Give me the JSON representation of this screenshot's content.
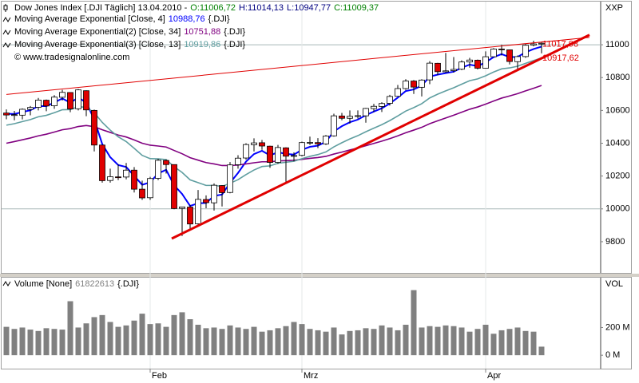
{
  "chart_data": [
    {
      "type": "candlestick",
      "title": "Dow Jones Index [.DJI  Täglich] 13.04.2010 -",
      "title_values": [
        {
          "text": "O:11006,72",
          "color": "#008000"
        },
        {
          "text": "H:11014,13",
          "color": "#000080"
        },
        {
          "text": "L:10947,77",
          "color": "#000080"
        },
        {
          "text": "C:11009,37",
          "color": "#008000"
        }
      ],
      "source": "© www.tradesignalonline.com",
      "axis_label": "XXP",
      "up_color": "#ffffff",
      "down_color": "#e00000",
      "wick_color": "#000000",
      "open": [
        10584,
        10571,
        10571,
        10606,
        10619,
        10662,
        10628,
        10680,
        10709,
        10610,
        10720,
        10600,
        10389,
        10173,
        10195,
        10194,
        10236,
        10120,
        10068,
        10186,
        10295,
        10270,
        10003,
        10011,
        9909,
        10057,
        10037,
        10142,
        10100,
        10269,
        10310,
        10391,
        10403,
        10382,
        10283,
        10372,
        10321,
        10326,
        10404,
        10404,
        10396,
        10445,
        10566,
        10552,
        10563,
        10567,
        10611,
        10624,
        10643,
        10686,
        10733,
        10779,
        10741,
        10786,
        10887,
        10835,
        10842,
        10851,
        10895,
        10906,
        10857,
        10927,
        10974,
        10969,
        10897,
        10928,
        10998,
        11006.72
      ],
      "high": [
        10606,
        10597,
        10612,
        10627,
        10676,
        10666,
        10693,
        10725,
        10710,
        10730,
        10722,
        10605,
        10390,
        10245,
        10271,
        10280,
        10255,
        10172,
        10195,
        10305,
        10301,
        10271,
        10012,
        10024,
        10115,
        10082,
        10155,
        10145,
        10285,
        10327,
        10400,
        10430,
        10420,
        10385,
        10390,
        10375,
        10345,
        10410,
        10440,
        10431,
        10450,
        10580,
        10585,
        10600,
        10600,
        10615,
        10640,
        10650,
        10695,
        10755,
        10790,
        10785,
        10790,
        10900,
        10890,
        10950,
        10925,
        10905,
        10920,
        10910,
        10960,
        10980,
        11000,
        10970,
        10935,
        11005,
        11025,
        11014.13
      ],
      "low": [
        10546,
        10540,
        10545,
        10570,
        10600,
        10595,
        10610,
        10660,
        10589,
        10600,
        10565,
        10350,
        10160,
        10160,
        10175,
        10180,
        10100,
        10055,
        10055,
        10175,
        10215,
        9998,
        9835,
        9875,
        9905,
        10004,
        9990,
        10015,
        10095,
        10245,
        10300,
        10350,
        10360,
        10250,
        10275,
        10160,
        10290,
        10320,
        10390,
        10370,
        10390,
        10440,
        10540,
        10520,
        10550,
        10525,
        10590,
        10590,
        10630,
        10685,
        10725,
        10700,
        10685,
        10760,
        10815,
        10830,
        10830,
        10845,
        10860,
        10850,
        10855,
        10925,
        10935,
        10880,
        10850,
        10920,
        10990,
        10947.77
      ],
      "close": [
        10572,
        10574,
        10607,
        10618,
        10663,
        10627,
        10681,
        10710,
        10609,
        10725,
        10603,
        10389,
        10172,
        10196,
        10194,
        10236,
        10120,
        10067,
        10185,
        10296,
        10270,
        10002,
        10012,
        9908,
        10058,
        10038,
        10144,
        10099,
        10268,
        10309,
        10392,
        10402,
        10383,
        10283,
        10374,
        10321,
        10325,
        10404,
        10405,
        10396,
        10444,
        10567,
        10552,
        10564,
        10568,
        10612,
        10625,
        10642,
        10685,
        10733,
        10779,
        10742,
        10785,
        10888,
        10836,
        10841,
        10850,
        10895,
        10907,
        10857,
        10927,
        10974,
        10970,
        10898,
        10928,
        10997,
        11005,
        11009.37
      ],
      "indicators": [
        {
          "name": "Moving Average Exponential [Close, 4]",
          "value_label": "10988,76",
          "suffix": "{.DJI}",
          "color": "#0000ff",
          "values": [
            10580,
            10578,
            10590,
            10601,
            10626,
            10626,
            10648,
            10673,
            10647,
            10678,
            10648,
            10544,
            10395,
            10315,
            10267,
            10255,
            10201,
            10147,
            10162,
            10216,
            10238,
            10144,
            10091,
            10018,
            10034,
            10036,
            10079,
            10087,
            10159,
            10219,
            10288,
            10334,
            10354,
            10326,
            10345,
            10335,
            10331,
            10360,
            10378,
            10385,
            10409,
            10472,
            10504,
            10528,
            10544,
            10571,
            10593,
            10613,
            10642,
            10678,
            10718,
            10728,
            10751,
            10806,
            10818,
            10827,
            10836,
            10860,
            10879,
            10870,
            10893,
            10925,
            10943,
            10925,
            10926,
            10954,
            10974,
            10988.76
          ]
        },
        {
          "name": "Moving Average Exponential(2) [Close, 34]",
          "value_label": "10751,88",
          "suffix": "{.DJI}",
          "color": "#800080",
          "values": [
            10400,
            10410,
            10421,
            10432,
            10445,
            10455,
            10468,
            10482,
            10489,
            10502,
            10508,
            10501,
            10482,
            10466,
            10450,
            10438,
            10420,
            10400,
            10388,
            10383,
            10377,
            10356,
            10336,
            10312,
            10297,
            10282,
            10274,
            10264,
            10264,
            10267,
            10274,
            10281,
            10287,
            10287,
            10292,
            10294,
            10296,
            10302,
            10308,
            10313,
            10320,
            10334,
            10346,
            10359,
            10371,
            10385,
            10399,
            10413,
            10428,
            10445,
            10464,
            10480,
            10497,
            10519,
            10537,
            10554,
            10571,
            10589,
            10607,
            10621,
            10638,
            10657,
            10675,
            10688,
            10702,
            10719,
            10735,
            10751.88
          ]
        },
        {
          "name": "Moving Average Exponential(3) [Close, 13]",
          "value_label": "10919,86",
          "suffix": "{.DJI}",
          "color": "#5f9ea0",
          "values": [
            10510,
            10519,
            10532,
            10544,
            10561,
            10570,
            10586,
            10604,
            10605,
            10622,
            10619,
            10586,
            10527,
            10480,
            10439,
            10410,
            10369,
            10326,
            10306,
            10305,
            10300,
            10257,
            10222,
            10177,
            10160,
            10143,
            10143,
            10137,
            10156,
            10178,
            10209,
            10237,
            10258,
            10262,
            10278,
            10284,
            10290,
            10306,
            10320,
            10331,
            10347,
            10378,
            10403,
            10426,
            10446,
            10470,
            10492,
            10513,
            10538,
            10566,
            10596,
            10617,
            10641,
            10676,
            10699,
            10719,
            10738,
            10760,
            10781,
            10792,
            10811,
            10834,
            10853,
            10859,
            10869,
            10887,
            10904,
            10919.86
          ]
        }
      ],
      "trendlines": [
        {
          "color": "#e00000",
          "width": 1,
          "x": [
            0,
            73
          ],
          "values": [
            10697,
            11045
          ],
          "end_label": {
            "x": 67,
            "value": 11017.98,
            "label": "11017,98"
          }
        },
        {
          "color": "#e00000",
          "width": 3,
          "x": [
            20.7,
            73
          ],
          "values": [
            9819,
            11060
          ],
          "end_label": {
            "x": 67,
            "value": 10917.62,
            "label": "10917,62"
          }
        }
      ],
      "ylim": [
        9610,
        11263
      ],
      "yticks": [
        9800,
        10000,
        10200,
        10400,
        10600,
        10800,
        11000
      ],
      "grid_values": [
        10000,
        11000
      ]
    },
    {
      "type": "bar",
      "name": "Volume [None]",
      "value_label": "61822613",
      "suffix": "{.DJI}",
      "axis_label": "VOL",
      "color": "#808080",
      "categories": [
        null,
        null,
        null,
        null,
        null,
        null,
        null,
        null,
        null,
        null,
        null,
        null,
        null,
        null,
        null,
        null,
        null,
        null,
        "Feb",
        null,
        null,
        null,
        null,
        null,
        null,
        null,
        null,
        null,
        null,
        null,
        null,
        null,
        null,
        null,
        null,
        null,
        null,
        "Mrz",
        null,
        null,
        null,
        null,
        null,
        null,
        null,
        null,
        null,
        null,
        null,
        null,
        null,
        null,
        null,
        null,
        null,
        null,
        null,
        null,
        null,
        null,
        "Apr",
        null,
        null,
        null,
        null,
        null,
        null,
        null
      ],
      "values": [
        205,
        190,
        200,
        185,
        175,
        195,
        190,
        185,
        390,
        200,
        230,
        275,
        290,
        240,
        205,
        215,
        250,
        300,
        225,
        230,
        205,
        290,
        310,
        260,
        220,
        195,
        200,
        190,
        215,
        200,
        190,
        205,
        170,
        180,
        195,
        210,
        240,
        225,
        190,
        180,
        170,
        200,
        150,
        175,
        180,
        195,
        190,
        215,
        200,
        180,
        220,
        470,
        200,
        210,
        205,
        215,
        210,
        200,
        170,
        190,
        220,
        155,
        180,
        190,
        200,
        175,
        170,
        61.822613
      ],
      "ylim": [
        -97,
        560
      ],
      "yticks": [
        {
          "value": 0,
          "label": "0 M"
        },
        {
          "value": 200,
          "label": "200 M"
        }
      ]
    }
  ]
}
